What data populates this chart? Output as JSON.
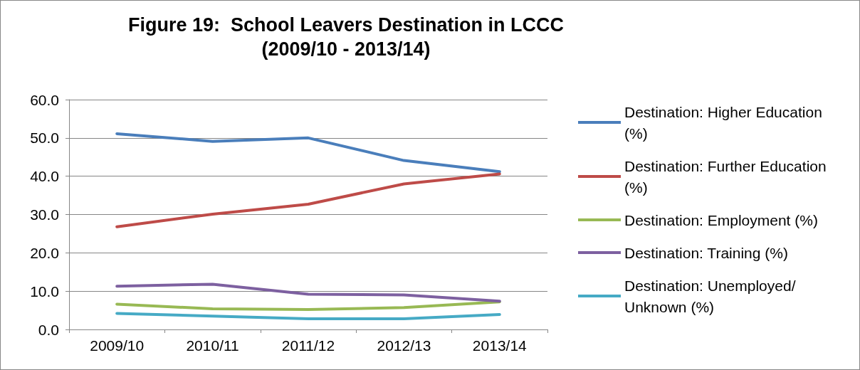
{
  "chart_data": {
    "type": "line",
    "title": "Figure 19:  School Leavers Destination in LCCC\n(2009/10 - 2013/14)",
    "categories": [
      "2009/10",
      "2010/11",
      "2011/12",
      "2012/13",
      "2013/14"
    ],
    "series": [
      {
        "name": "Destination: Higher Education (%)",
        "color": "#4a7ebb",
        "values": [
          51.1,
          49.1,
          50.0,
          44.1,
          41.2
        ]
      },
      {
        "name": "Destination: Further Education (%)",
        "color": "#be4b48",
        "values": [
          26.8,
          30.1,
          32.7,
          38.0,
          40.6
        ]
      },
      {
        "name": "Destination: Employment (%)",
        "color": "#98b954",
        "values": [
          6.6,
          5.4,
          5.2,
          5.7,
          7.2
        ]
      },
      {
        "name": "Destination: Training (%)",
        "color": "#7d60a0",
        "values": [
          11.3,
          11.8,
          9.2,
          9.0,
          7.4
        ]
      },
      {
        "name": "Destination: Unemployed/Unknown (%)",
        "color": "#46aac5",
        "values": [
          4.2,
          3.5,
          2.8,
          2.8,
          3.9
        ]
      }
    ],
    "ylim": [
      0,
      60
    ],
    "yticks": [
      {
        "value": 0,
        "label": "0.0"
      },
      {
        "value": 10,
        "label": "10.0"
      },
      {
        "value": 20,
        "label": "20.0"
      },
      {
        "value": 30,
        "label": "30.0"
      },
      {
        "value": 40,
        "label": "40.0"
      },
      {
        "value": 50,
        "label": "50.0"
      },
      {
        "value": 60,
        "label": "60.0"
      }
    ],
    "grid": "y",
    "legend": "right",
    "marker": "none",
    "line_style": "solid"
  }
}
